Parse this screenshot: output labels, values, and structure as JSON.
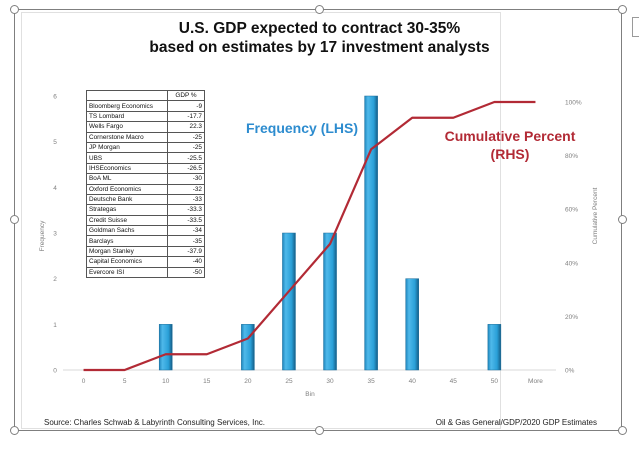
{
  "chart_data": {
    "type": "bar",
    "title": "U.S. GDP expected to contract 30-35%",
    "subtitle": "based on estimates by 17 investment analysts",
    "xlabel": "Bin",
    "ylabel": "Frequency",
    "y2label": "Cumulative Percent",
    "categories": [
      "0",
      "5",
      "10",
      "15",
      "20",
      "25",
      "30",
      "35",
      "40",
      "45",
      "50",
      "More"
    ],
    "ylim": [
      0,
      6
    ],
    "yticks": [
      "0",
      "1",
      "2",
      "3",
      "4",
      "5",
      "6"
    ],
    "y2lim": [
      0,
      100
    ],
    "y2ticks": [
      "0%",
      "20%",
      "40%",
      "60%",
      "80%",
      "100%"
    ],
    "grid": false,
    "series": [
      {
        "name": "Frequency",
        "type": "bar",
        "axis": "left",
        "color": "#2fa3dc",
        "values": [
          0,
          0,
          1,
          0,
          1,
          3,
          3,
          6,
          2,
          0,
          1,
          0
        ]
      },
      {
        "name": "Cumulative Percent",
        "type": "line",
        "axis": "right",
        "color": "#b22a35",
        "values": [
          0,
          0,
          5.88,
          5.88,
          11.76,
          29.41,
          47.06,
          82.35,
          94.12,
          94.12,
          100,
          100
        ]
      }
    ],
    "annotations": [
      {
        "text": "Frequency (LHS)",
        "color": "#2d8ccf"
      },
      {
        "text": "Cumulative Percent (RHS)",
        "color": "#b22a35"
      }
    ]
  },
  "table": {
    "header": [
      "",
      "GDP %"
    ],
    "rows": [
      [
        "Bloomberg Economics",
        "-9"
      ],
      [
        "TS Lombard",
        "-17.7"
      ],
      [
        "Wells Fargo",
        "22.3"
      ],
      [
        "Cornerstone Macro",
        "-25"
      ],
      [
        "JP Morgan",
        "-25"
      ],
      [
        "UBS",
        "-25.5"
      ],
      [
        "IHSEconomics",
        "-26.5"
      ],
      [
        "BoA ML",
        "-30"
      ],
      [
        "Oxford Economics",
        "-32"
      ],
      [
        "Deutsche Bank",
        "-33"
      ],
      [
        "Strategas",
        "-33.3"
      ],
      [
        "Credit Suisse",
        "-33.5"
      ],
      [
        "Goldman Sachs",
        "-34"
      ],
      [
        "Barclays",
        "-35"
      ],
      [
        "Morgan Stanley",
        "-37.9"
      ],
      [
        "Capital Economics",
        "-40"
      ],
      [
        "Evercore ISI",
        "-50"
      ]
    ]
  },
  "annotations": {
    "freq": "Frequency (LHS)",
    "cum_line1": "Cumulative Percent",
    "cum_line2": "(RHS)"
  },
  "footer": {
    "source": "Source: Charles Schwab & Labyrinth Consulting Services, Inc.",
    "path": "Oil & Gas General/GDP/2020 GDP Estimates"
  }
}
